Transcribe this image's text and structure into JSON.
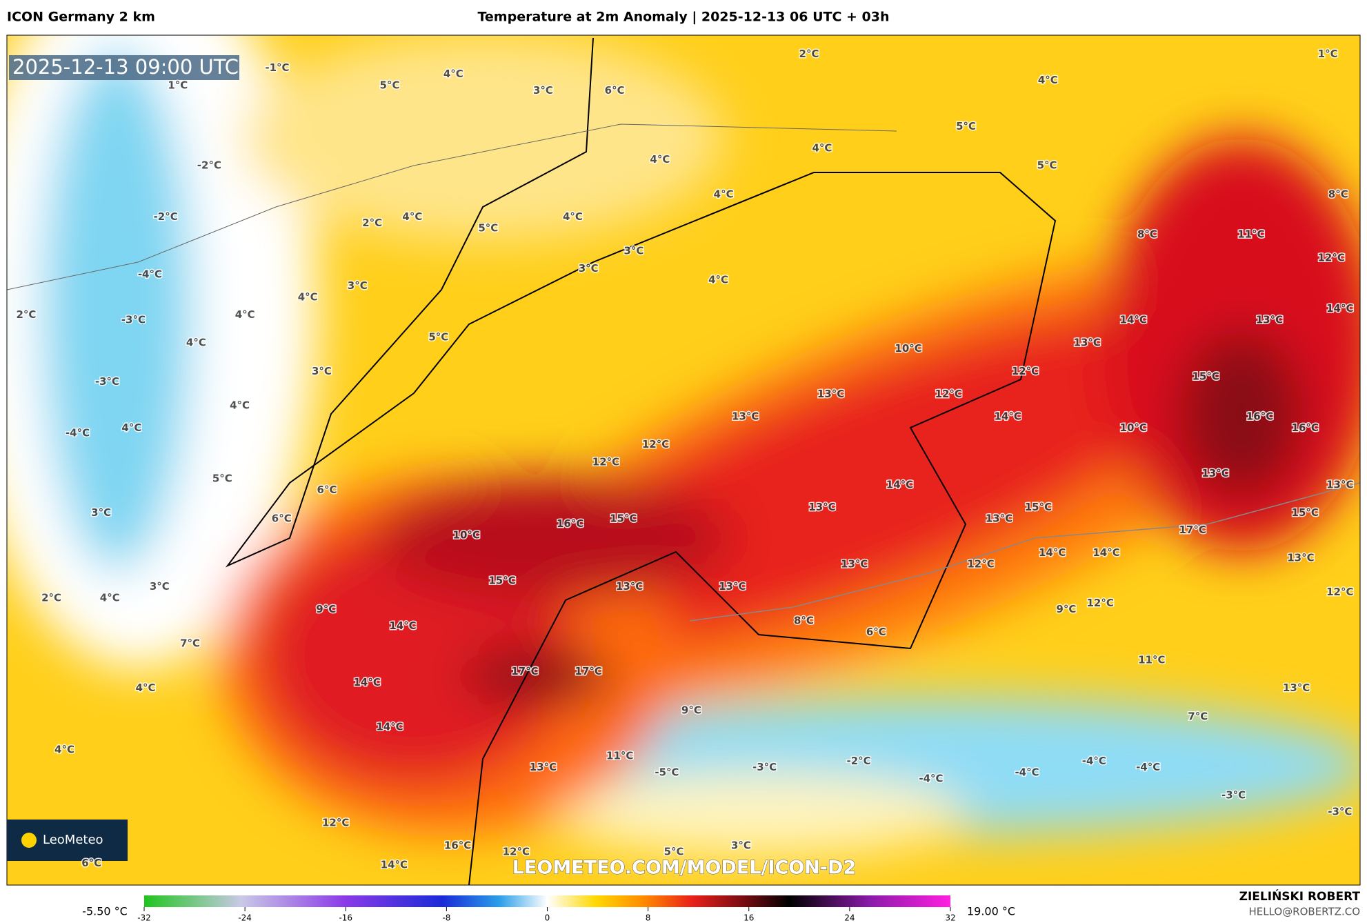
{
  "header": {
    "model": "ICON Germany 2 km",
    "title": "Temperature at 2m Anomaly | 2025-12-13 06 UTC + 03h"
  },
  "map": {
    "timestamp": "2025-12-13 09:00 UTC",
    "logo": "LeoMeteo",
    "watermark": "LEOMETEO.COM/MODEL/ICON-D2",
    "labels": [
      "-1°C",
      "1°C",
      "5°C",
      "4°C",
      "3°C",
      "6°C",
      "2°C",
      "4°C",
      "1°C",
      "5°C",
      "4°C",
      "5°C",
      "4°C",
      "-2°C",
      "4°C",
      "-2°C",
      "2°C",
      "4°C",
      "5°C",
      "4°C",
      "8°C",
      "11°C",
      "8°C",
      "12°C",
      "3°C",
      "-4°C",
      "3°C",
      "4°C",
      "3°C",
      "4°C",
      "14°C",
      "2°C",
      "4°C",
      "-3°C",
      "14°C",
      "13°C",
      "5°C",
      "4°C",
      "13°C",
      "10°C",
      "3°C",
      "12°C",
      "-3°C",
      "15°C",
      "13°C",
      "12°C",
      "4°C",
      "13°C",
      "14°C",
      "16°C",
      "-4°C",
      "4°C",
      "10°C",
      "16°C",
      "12°C",
      "12°C",
      "13°C",
      "5°C",
      "14°C",
      "13°C",
      "6°C",
      "3°C",
      "13°C",
      "15°C",
      "15°C",
      "6°C",
      "16°C",
      "15°C",
      "13°C",
      "17°C",
      "10°C",
      "14°C",
      "14°C",
      "13°C",
      "12°C",
      "13°C",
      "15°C",
      "13°C",
      "13°C",
      "3°C",
      "2°C",
      "4°C",
      "12°C",
      "12°C",
      "9°C",
      "9°C",
      "14°C",
      "8°C",
      "6°C",
      "7°C",
      "11°C",
      "17°C",
      "17°C",
      "14°C",
      "4°C",
      "13°C",
      "9°C",
      "7°C",
      "14°C",
      "4°C",
      "11°C",
      "13°C",
      "-5°C",
      "-3°C",
      "-2°C",
      "-4°C",
      "-4°C",
      "-4°C",
      "-4°C",
      "-3°C",
      "-3°C",
      "12°C",
      "16°C",
      "12°C",
      "5°C",
      "3°C",
      "14°C",
      "6°C"
    ]
  },
  "colorbar": {
    "min_label": "-5.50 °C",
    "max_label": "19.00 °C",
    "ticks": [
      -32,
      -24,
      -16,
      -8,
      0,
      8,
      16,
      24,
      32
    ],
    "lim": [
      -32,
      32
    ]
  },
  "credit": {
    "name": "ZIELIŃSKI ROBERT",
    "email": "HELLO@ROBERTZ.CO"
  }
}
